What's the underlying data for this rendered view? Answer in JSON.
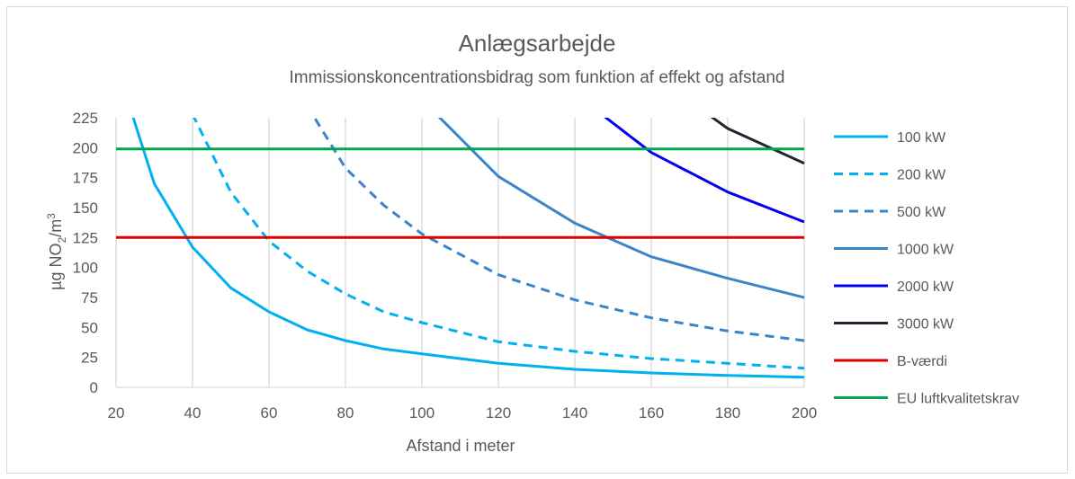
{
  "chart_data": {
    "type": "line",
    "title": "Anlægsarbejde",
    "subtitle": "Immissionskoncentrationsbidrag som funktion af effekt og afstand",
    "xlabel": "Afstand i meter",
    "ylabel_parts": [
      "µg NO",
      "2",
      "/m",
      "3"
    ],
    "xlim": [
      20,
      200
    ],
    "ylim": [
      0,
      225
    ],
    "x_ticks": [
      20,
      40,
      60,
      80,
      100,
      120,
      140,
      160,
      180,
      200
    ],
    "y_ticks": [
      0,
      25,
      50,
      75,
      100,
      125,
      150,
      175,
      200,
      225
    ],
    "grid": "vertical",
    "legend_position": "right",
    "series": [
      {
        "name": "100 kW",
        "color": "#00B0F0",
        "dash": "solid",
        "x": [
          20,
          30,
          40,
          50,
          60,
          70,
          80,
          90,
          100,
          120,
          140,
          160,
          180,
          200
        ],
        "y": [
          270,
          170,
          117,
          83,
          63,
          48,
          39,
          32,
          28,
          20,
          15,
          12,
          10,
          8.5
        ]
      },
      {
        "name": "200 kW",
        "color": "#00B0F0",
        "dash": "dashed",
        "x": [
          40,
          50,
          60,
          70,
          80,
          90,
          100,
          120,
          140,
          160,
          180,
          200
        ],
        "y": [
          228,
          163,
          122,
          97,
          78,
          63,
          54,
          38,
          30,
          24,
          20,
          16
        ]
      },
      {
        "name": "500 kW",
        "color": "#3C84C8",
        "dash": "dashed",
        "x": [
          70,
          80,
          90,
          100,
          120,
          140,
          160,
          180,
          200
        ],
        "y": [
          235,
          183,
          152,
          128,
          94,
          73,
          58,
          47,
          39
        ]
      },
      {
        "name": "1000 kW",
        "color": "#3C84C8",
        "dash": "solid",
        "x": [
          100,
          120,
          140,
          160,
          180,
          200
        ],
        "y": [
          240,
          176,
          137,
          109,
          91,
          75
        ]
      },
      {
        "name": "2000 kW",
        "color": "#0000EE",
        "dash": "solid",
        "x": [
          140,
          160,
          180,
          200
        ],
        "y": [
          245,
          196,
          163,
          138
        ]
      },
      {
        "name": "3000 kW",
        "color": "#1F2530",
        "dash": "solid",
        "x": [
          160,
          180,
          200
        ],
        "y": [
          262,
          216,
          187
        ]
      },
      {
        "name": "B-værdi",
        "color": "#E00000",
        "dash": "solid",
        "x": [
          20,
          200
        ],
        "y": [
          125,
          125
        ]
      },
      {
        "name": "EU luftkvalitetskrav",
        "color": "#00A650",
        "dash": "solid",
        "x": [
          20,
          200
        ],
        "y": [
          199,
          199
        ]
      }
    ]
  }
}
